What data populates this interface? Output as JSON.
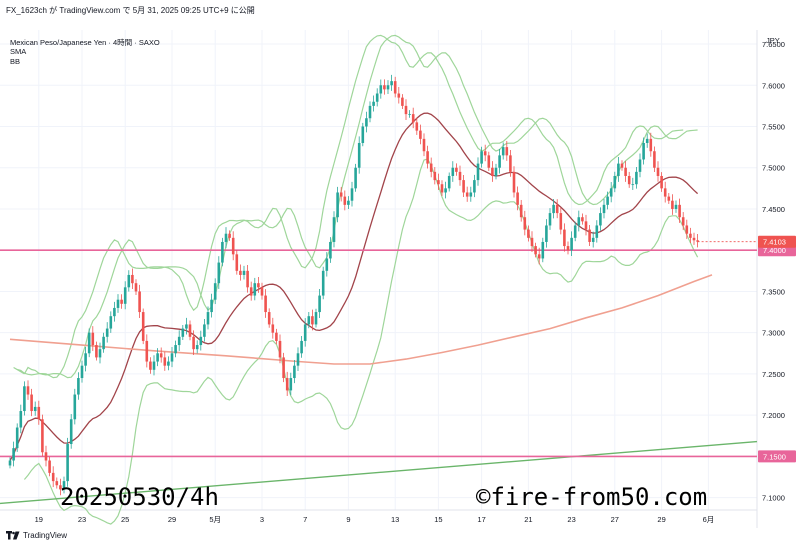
{
  "header": {
    "publish_line": "FX_1623ch が TradingView.com で 5月 31, 2025 09:25 UTC+9 に公開"
  },
  "legend": {
    "symbol_line": "Mexican Peso/Japanese Yen · 4時間 · SAXO",
    "indicator_1": "SMA",
    "indicator_2": "BB"
  },
  "axis": {
    "currency": "JPY"
  },
  "watermark": {
    "date_text": "20250530/4h",
    "site_text": "©fire-from50.com"
  },
  "footer": {
    "brand": "TradingView",
    "logo_icon": "tradingview-logo-icon"
  },
  "colors": {
    "candle_up": "#26a69a",
    "candle_down": "#ef5350",
    "bb_band": "#9fd69a",
    "sma_basis": "#a2444a",
    "long_ma": "#f0a090",
    "trendline": "#6ab56a",
    "hline": "#e8659a",
    "last_price_tag": "#ef5350",
    "level_tag": "#e8659a"
  },
  "chart_data": {
    "type": "candlestick",
    "symbol": "Mexican Peso/Japanese Yen",
    "interval": "4時間",
    "ylim": [
      7.085,
      7.667
    ],
    "y_ticks": [
      "7.6500",
      "7.6000",
      "7.5500",
      "7.5000",
      "7.4500",
      "7.4000",
      "7.3500",
      "7.3000",
      "7.2500",
      "7.2000",
      "7.1500",
      "7.1000"
    ],
    "x_ticks": [
      {
        "label": "19",
        "index": 8
      },
      {
        "label": "23",
        "index": 20
      },
      {
        "label": "25",
        "index": 32
      },
      {
        "label": "29",
        "index": 45
      },
      {
        "label": "5月",
        "index": 57
      },
      {
        "label": "3",
        "index": 70
      },
      {
        "label": "7",
        "index": 82
      },
      {
        "label": "9",
        "index": 94
      },
      {
        "label": "13",
        "index": 107
      },
      {
        "label": "15",
        "index": 119
      },
      {
        "label": "17",
        "index": 131
      },
      {
        "label": "21",
        "index": 144
      },
      {
        "label": "23",
        "index": 156
      },
      {
        "label": "27",
        "index": 168
      },
      {
        "label": "29",
        "index": 181
      },
      {
        "label": "6月",
        "index": 194
      }
    ],
    "close": [
      7.145,
      7.16,
      7.185,
      7.205,
      7.235,
      7.225,
      7.205,
      7.21,
      7.195,
      7.155,
      7.145,
      7.13,
      7.12,
      7.115,
      7.11,
      7.12,
      7.165,
      7.195,
      7.225,
      7.245,
      7.26,
      7.275,
      7.3,
      7.285,
      7.27,
      7.28,
      7.295,
      7.305,
      7.32,
      7.33,
      7.34,
      7.335,
      7.355,
      7.37,
      7.36,
      7.35,
      7.325,
      7.29,
      7.265,
      7.255,
      7.265,
      7.275,
      7.27,
      7.26,
      7.265,
      7.275,
      7.285,
      7.295,
      7.305,
      7.31,
      7.295,
      7.28,
      7.285,
      7.295,
      7.31,
      7.325,
      7.34,
      7.36,
      7.385,
      7.41,
      7.42,
      7.415,
      7.395,
      7.375,
      7.37,
      7.375,
      7.355,
      7.345,
      7.36,
      7.355,
      7.345,
      7.325,
      7.31,
      7.3,
      7.29,
      7.27,
      7.245,
      7.23,
      7.245,
      7.26,
      7.275,
      7.29,
      7.31,
      7.32,
      7.31,
      7.325,
      7.345,
      7.375,
      7.39,
      7.41,
      7.44,
      7.47,
      7.465,
      7.455,
      7.46,
      7.475,
      7.5,
      7.53,
      7.55,
      7.56,
      7.575,
      7.58,
      7.59,
      7.6,
      7.595,
      7.6,
      7.605,
      7.59,
      7.585,
      7.575,
      7.565,
      7.565,
      7.555,
      7.545,
      7.535,
      7.52,
      7.505,
      7.495,
      7.485,
      7.48,
      7.47,
      7.475,
      7.49,
      7.5,
      7.495,
      7.485,
      7.47,
      7.465,
      7.47,
      7.485,
      7.505,
      7.52,
      7.515,
      7.5,
      7.49,
      7.5,
      7.515,
      7.525,
      7.515,
      7.495,
      7.47,
      7.455,
      7.44,
      7.425,
      7.415,
      7.405,
      7.395,
      7.39,
      7.41,
      7.43,
      7.445,
      7.455,
      7.445,
      7.425,
      7.405,
      7.4,
      7.415,
      7.43,
      7.44,
      7.435,
      7.425,
      7.41,
      7.415,
      7.43,
      7.445,
      7.455,
      7.465,
      7.475,
      7.49,
      7.505,
      7.5,
      7.49,
      7.48,
      7.48,
      7.495,
      7.51,
      7.53,
      7.535,
      7.52,
      7.5,
      7.49,
      7.475,
      7.465,
      7.46,
      7.45,
      7.455,
      7.44,
      7.43,
      7.42,
      7.415,
      7.412,
      7.4103
    ],
    "last_price": 7.4103,
    "last_price_label": "7.4103",
    "series": [
      {
        "name": "SMA",
        "type": "line"
      },
      {
        "name": "BB",
        "type": "band"
      }
    ],
    "long_ma": {
      "points": [
        [
          0,
          7.292
        ],
        [
          20,
          7.285
        ],
        [
          40,
          7.278
        ],
        [
          60,
          7.272
        ],
        [
          80,
          7.265
        ],
        [
          90,
          7.262
        ],
        [
          100,
          7.262
        ],
        [
          110,
          7.268
        ],
        [
          120,
          7.276
        ],
        [
          130,
          7.285
        ],
        [
          140,
          7.295
        ],
        [
          150,
          7.305
        ],
        [
          160,
          7.318
        ],
        [
          170,
          7.33
        ],
        [
          180,
          7.345
        ],
        [
          190,
          7.362
        ],
        [
          195,
          7.37
        ]
      ]
    },
    "trendline": {
      "points": [
        [
          0,
          7.093
        ],
        [
          206,
          7.168
        ]
      ]
    },
    "hlines": [
      {
        "value": 7.4,
        "label": "7.4000"
      },
      {
        "value": 7.15,
        "label": "7.1500"
      }
    ]
  }
}
